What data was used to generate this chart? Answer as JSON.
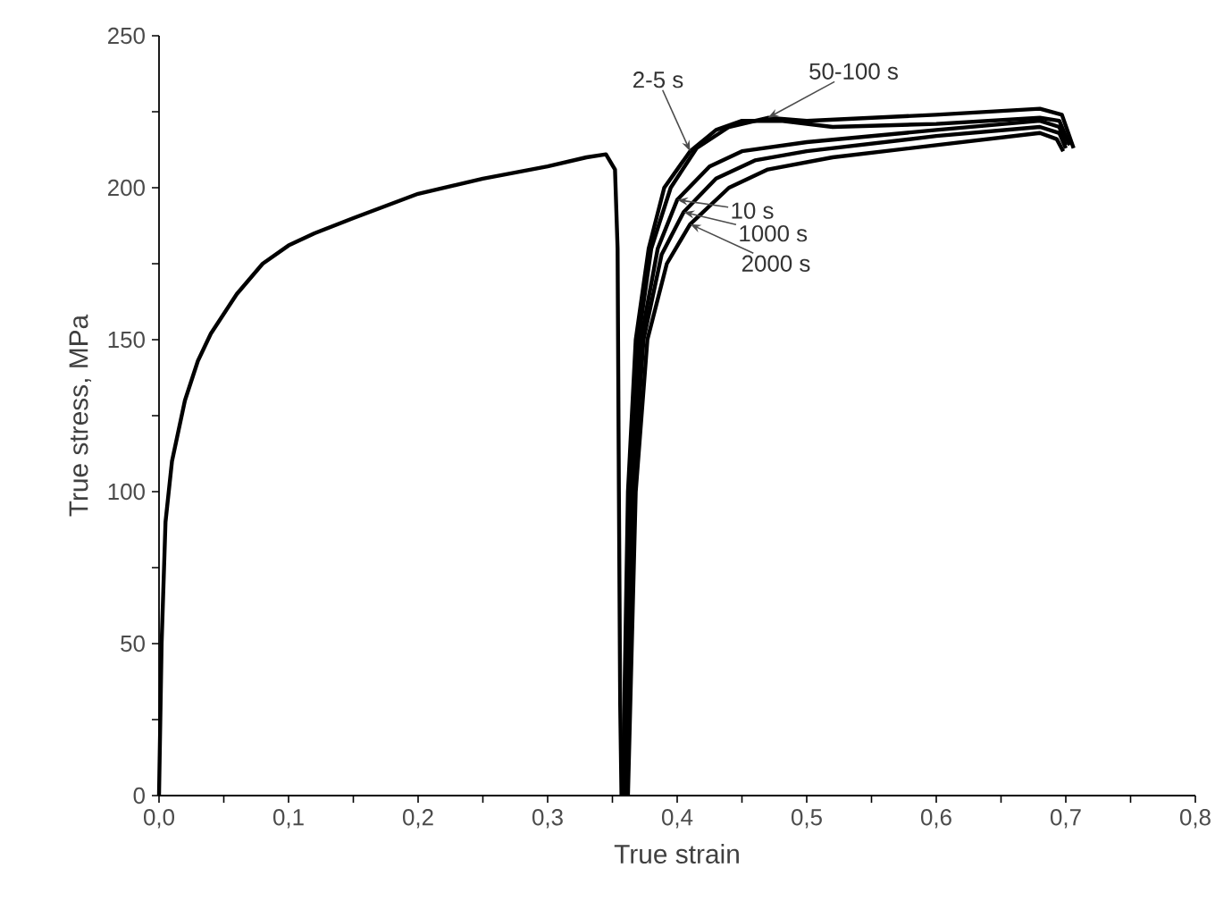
{
  "chart_data": {
    "type": "line",
    "xlabel": "True strain",
    "ylabel": "True stress, MPa",
    "xlim": [
      0,
      0.8
    ],
    "ylim": [
      0,
      250
    ],
    "xticks": [
      {
        "value": 0,
        "label": "0,0"
      },
      {
        "value": 0.05,
        "label": null
      },
      {
        "value": 0.1,
        "label": "0,1"
      },
      {
        "value": 0.15,
        "label": null
      },
      {
        "value": 0.2,
        "label": "0,2"
      },
      {
        "value": 0.25,
        "label": null
      },
      {
        "value": 0.3,
        "label": "0,3"
      },
      {
        "value": 0.35,
        "label": null
      },
      {
        "value": 0.4,
        "label": "0,4"
      },
      {
        "value": 0.45,
        "label": null
      },
      {
        "value": 0.5,
        "label": "0,5"
      },
      {
        "value": 0.55,
        "label": null
      },
      {
        "value": 0.6,
        "label": "0,6"
      },
      {
        "value": 0.65,
        "label": null
      },
      {
        "value": 0.7,
        "label": "0,7"
      },
      {
        "value": 0.75,
        "label": null
      },
      {
        "value": 0.8,
        "label": "0,8"
      }
    ],
    "yticks": [
      0,
      {
        "value": 25,
        "label": null
      },
      50,
      {
        "value": 75,
        "label": null
      },
      100,
      {
        "value": 125,
        "label": null
      },
      150,
      {
        "value": 175,
        "label": null
      },
      200,
      {
        "value": 225,
        "label": null
      },
      250
    ],
    "grid": false,
    "marker": "none",
    "line_style": "solid",
    "series": [
      {
        "color": "#000000",
        "x": [
          0,
          0.002,
          0.005,
          0.01,
          0.02,
          0.03,
          0.04,
          0.06,
          0.08,
          0.1,
          0.12,
          0.15,
          0.2,
          0.25,
          0.3,
          0.33,
          0.345,
          0.352,
          0.354,
          0.355,
          0.356,
          0.357
        ],
        "values": [
          0,
          50,
          90,
          110,
          130,
          143,
          152,
          165,
          175,
          181,
          185,
          190,
          198,
          203,
          207,
          210,
          211,
          206,
          180,
          100,
          30,
          0
        ]
      },
      {
        "color": "#000000",
        "x": [
          0.358,
          0.362,
          0.368,
          0.378,
          0.39,
          0.41,
          0.43,
          0.45,
          0.48,
          0.52,
          0.6,
          0.68,
          0.695,
          0.703
        ],
        "values": [
          0,
          100,
          150,
          180,
          200,
          212,
          219,
          222,
          222,
          220,
          221,
          223,
          222,
          214
        ]
      },
      {
        "color": "#000000",
        "x": [
          0.36,
          0.364,
          0.37,
          0.38,
          0.395,
          0.415,
          0.44,
          0.47,
          0.5,
          0.6,
          0.68,
          0.697,
          0.706
        ],
        "values": [
          0,
          100,
          150,
          180,
          200,
          213,
          220,
          223,
          222,
          224,
          226,
          224,
          213
        ]
      },
      {
        "color": "#000000",
        "x": [
          0.36,
          0.365,
          0.372,
          0.385,
          0.4,
          0.425,
          0.45,
          0.5,
          0.6,
          0.68,
          0.695,
          0.7
        ],
        "values": [
          0,
          100,
          150,
          180,
          196,
          207,
          212,
          215,
          219,
          222,
          220,
          214
        ]
      },
      {
        "color": "#000000",
        "x": [
          0.361,
          0.366,
          0.374,
          0.388,
          0.405,
          0.43,
          0.46,
          0.5,
          0.6,
          0.68,
          0.695,
          0.7
        ],
        "values": [
          0,
          100,
          150,
          178,
          192,
          203,
          209,
          212,
          217,
          220,
          218,
          213
        ]
      },
      {
        "color": "#000000",
        "x": [
          0.362,
          0.368,
          0.377,
          0.392,
          0.41,
          0.44,
          0.47,
          0.52,
          0.6,
          0.68,
          0.693,
          0.698
        ],
        "values": [
          0,
          100,
          150,
          175,
          188,
          200,
          206,
          210,
          214,
          218,
          216,
          212
        ]
      }
    ],
    "annotations": [
      {
        "text": "2-5 s",
        "x": 0.41,
        "y": 212
      },
      {
        "text": "50-100 s",
        "x": 0.47,
        "y": 223
      },
      {
        "text": "10 s",
        "x": 0.4,
        "y": 196
      },
      {
        "text": "1000 s",
        "x": 0.405,
        "y": 192
      },
      {
        "text": "2000 s",
        "x": 0.41,
        "y": 188
      }
    ]
  }
}
